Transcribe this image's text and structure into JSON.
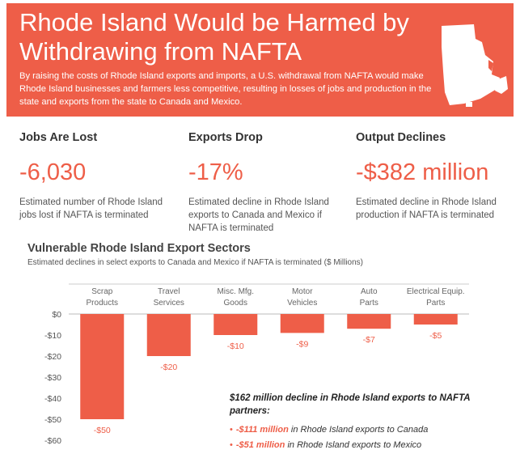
{
  "banner": {
    "title": "Rhode Island Would be Harmed by Withdrawing from NAFTA",
    "description": "By raising the costs of Rhode Island exports and imports, a U.S. withdrawal from NAFTA would make Rhode Island businesses and farmers less competitive, resulting in losses of jobs and production in the state and exports from the state to Canada and Mexico.",
    "color": "#ee5e48"
  },
  "metrics": [
    {
      "heading": "Jobs Are Lost",
      "value": "-6,030",
      "desc": "Estimated number of Rhode Island jobs lost if NAFTA is terminated"
    },
    {
      "heading": "Exports Drop",
      "value": "-17%",
      "desc": "Estimated decline in Rhode Island exports to Canada and Mexico if NAFTA is terminated"
    },
    {
      "heading": "Output Declines",
      "value": "-$382 million",
      "desc": "Estimated decline in Rhode Island production if NAFTA is terminated"
    }
  ],
  "chart_data": {
    "type": "bar",
    "title": "Vulnerable Rhode Island Export Sectors",
    "subtitle": "Estimated declines in select exports to Canada and Mexico if NAFTA is terminated ($ Millions)",
    "categories": [
      "Scrap Products",
      "Travel Services",
      "Misc. Mfg. Goods",
      "Motor Vehicles",
      "Auto Parts",
      "Electrical Equip. Parts"
    ],
    "values": [
      -50,
      -20,
      -10,
      -9,
      -7,
      -5
    ],
    "data_labels": [
      "-$50",
      "-$20",
      "-$10",
      "-$9",
      "-$7",
      "-$5"
    ],
    "y_ticks": [
      "$0",
      "-$10",
      "-$20",
      "-$30",
      "-$40",
      "-$50",
      "-$60"
    ],
    "ylim": [
      -60,
      0
    ],
    "bar_color": "#ee5e48",
    "grid": false
  },
  "callout": {
    "heading": "$162 million decline in Rhode Island exports to NAFTA partners:",
    "items": [
      {
        "amount": "-$111 million",
        "text": " in Rhode Island exports to Canada"
      },
      {
        "amount": "-$51 million",
        "text": " in Rhode Island exports to Mexico"
      }
    ]
  }
}
